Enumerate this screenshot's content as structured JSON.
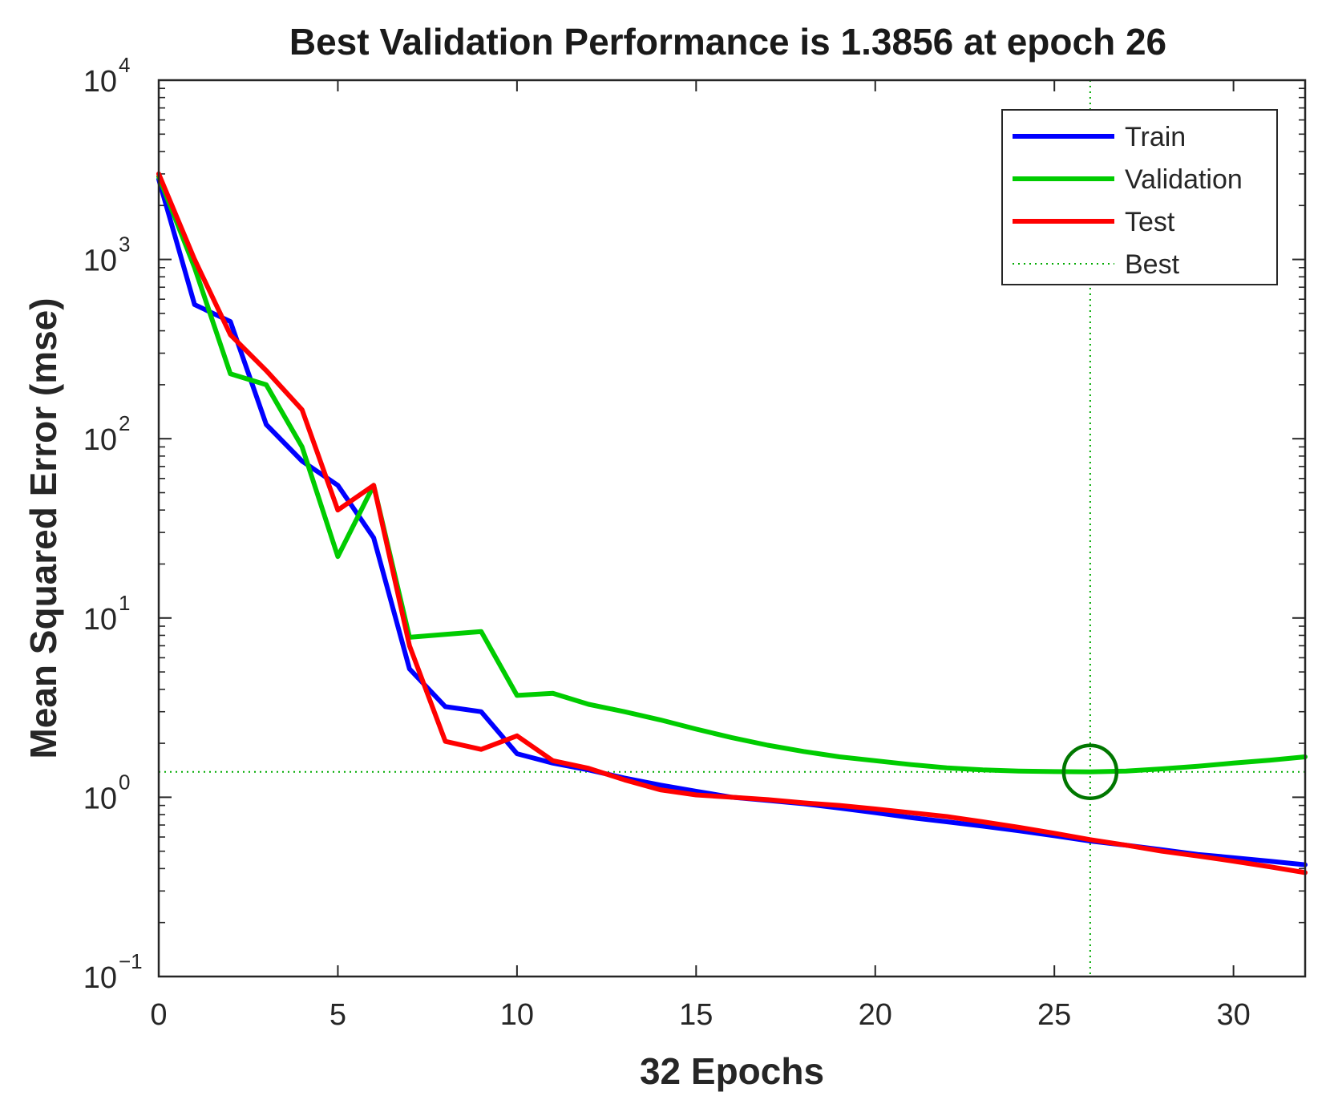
{
  "chart_data": {
    "type": "line",
    "title": "Best Validation Performance is 1.3856 at epoch 26",
    "xlabel": "32 Epochs",
    "ylabel": "Mean Squared Error  (mse)",
    "xlim": [
      0,
      32
    ],
    "ylim": [
      0.1,
      10000
    ],
    "yscale": "log",
    "x_ticks": [
      0,
      5,
      10,
      15,
      20,
      25,
      30
    ],
    "y_ticks": [
      {
        "value": 0.1,
        "base": "10",
        "exp": "−1"
      },
      {
        "value": 1,
        "base": "10",
        "exp": "0"
      },
      {
        "value": 10,
        "base": "10",
        "exp": "1"
      },
      {
        "value": 100,
        "base": "10",
        "exp": "2"
      },
      {
        "value": 1000,
        "base": "10",
        "exp": "3"
      },
      {
        "value": 10000,
        "base": "10",
        "exp": "4"
      }
    ],
    "legend_position": "top-right",
    "series": [
      {
        "name": "Train",
        "color": "#0000ff",
        "x": [
          0,
          1,
          2,
          3,
          4,
          5,
          6,
          7,
          8,
          9,
          10,
          11,
          12,
          13,
          14,
          15,
          16,
          17,
          18,
          19,
          20,
          21,
          22,
          23,
          24,
          25,
          26,
          27,
          28,
          29,
          30,
          31,
          32
        ],
        "values": [
          2800,
          560,
          450,
          120,
          75,
          55,
          28,
          5.2,
          3.2,
          3.0,
          1.75,
          1.55,
          1.42,
          1.28,
          1.17,
          1.08,
          1.0,
          0.96,
          0.92,
          0.87,
          0.82,
          0.77,
          0.73,
          0.69,
          0.65,
          0.61,
          0.57,
          0.54,
          0.51,
          0.48,
          0.46,
          0.44,
          0.42
        ]
      },
      {
        "name": "Validation",
        "color": "#00cc00",
        "x": [
          0,
          1,
          2,
          3,
          4,
          5,
          6,
          7,
          8,
          9,
          10,
          11,
          12,
          13,
          14,
          15,
          16,
          17,
          18,
          19,
          20,
          21,
          22,
          23,
          24,
          25,
          26,
          27,
          28,
          29,
          30,
          31,
          32
        ],
        "values": [
          2900,
          900,
          230,
          200,
          90,
          22,
          55,
          7.8,
          8.1,
          8.4,
          3.7,
          3.8,
          3.3,
          3.0,
          2.7,
          2.4,
          2.15,
          1.95,
          1.8,
          1.68,
          1.6,
          1.52,
          1.46,
          1.42,
          1.4,
          1.39,
          1.3856,
          1.4,
          1.44,
          1.49,
          1.55,
          1.61,
          1.68
        ]
      },
      {
        "name": "Test",
        "color": "#ff0000",
        "x": [
          0,
          1,
          2,
          3,
          4,
          5,
          6,
          7,
          8,
          9,
          10,
          11,
          12,
          13,
          14,
          15,
          16,
          17,
          18,
          19,
          20,
          21,
          22,
          23,
          24,
          25,
          26,
          27,
          28,
          29,
          30,
          31,
          32
        ],
        "values": [
          3000,
          1000,
          380,
          240,
          145,
          40,
          55,
          7.0,
          2.05,
          1.85,
          2.2,
          1.6,
          1.45,
          1.25,
          1.1,
          1.03,
          1.0,
          0.97,
          0.93,
          0.9,
          0.86,
          0.82,
          0.78,
          0.73,
          0.68,
          0.63,
          0.58,
          0.54,
          0.5,
          0.47,
          0.44,
          0.41,
          0.38
        ]
      }
    ],
    "best": {
      "label": "Best",
      "epoch": 26,
      "value": 1.3856,
      "color": "#00aa00",
      "marker_color": "#007700"
    }
  }
}
